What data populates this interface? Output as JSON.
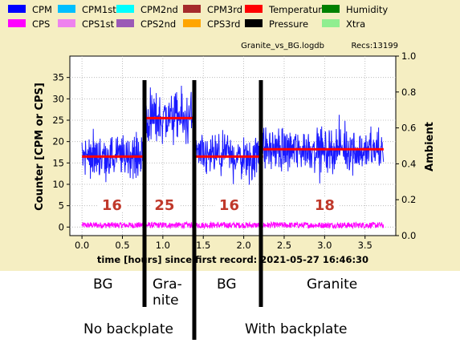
{
  "chart_data": {
    "type": "line",
    "file_label": "Granite_vs_BG.logdb",
    "recs_label": "Recs:13199",
    "xlabel": "time [hours] since first record: 2021-05-27 16:46:30",
    "ylabel_left": "Counter  [CPM or CPS]",
    "ylabel_right": "Ambient",
    "xlim": [
      -0.15,
      3.88
    ],
    "ylim_left": [
      -2,
      40
    ],
    "ylim_right": [
      0.0,
      1.0
    ],
    "x_ticks": [
      "0.0",
      "0.5",
      "1.0",
      "1.5",
      "2.0",
      "2.5",
      "3.0",
      "3.5"
    ],
    "y_ticks_left": [
      "0",
      "5",
      "10",
      "15",
      "20",
      "25",
      "30",
      "35"
    ],
    "y_ticks_right": [
      "0.0",
      "0.2",
      "0.4",
      "0.6",
      "0.8",
      "1.0"
    ],
    "legend": [
      {
        "name": "CPM",
        "color": "#0000ff"
      },
      {
        "name": "CPM1st",
        "color": "#00bfff"
      },
      {
        "name": "CPM2nd",
        "color": "#00ffff"
      },
      {
        "name": "CPM3rd",
        "color": "#a52a2a"
      },
      {
        "name": "Temperature",
        "color": "#ff0000"
      },
      {
        "name": "Humidity",
        "color": "#008000"
      },
      {
        "name": "CPS",
        "color": "#ff00ff"
      },
      {
        "name": "CPS1st",
        "color": "#ee82ee"
      },
      {
        "name": "CPS2nd",
        "color": "#9b59b6"
      },
      {
        "name": "CPS3rd",
        "color": "#ffa500"
      },
      {
        "name": "Pressure",
        "color": "#000000"
      },
      {
        "name": "Xtra",
        "color": "#90ee90"
      }
    ],
    "series": [
      {
        "name": "CPM",
        "color": "#1a1aff",
        "segments": [
          {
            "x_start": 0.0,
            "x_end": 0.77,
            "mean": 16.5,
            "spread": 5.5
          },
          {
            "x_start": 0.77,
            "x_end": 1.38,
            "mean": 25.5,
            "spread": 6.5
          },
          {
            "x_start": 1.38,
            "x_end": 2.24,
            "mean": 16.5,
            "spread": 5.5
          },
          {
            "x_start": 2.24,
            "x_end": 3.73,
            "mean": 18.2,
            "spread": 5.5
          }
        ]
      },
      {
        "name": "CPS",
        "color": "#ff00ff",
        "mean": 0.3,
        "spread": 1.4
      }
    ],
    "average_lines": [
      {
        "x_start": 0.0,
        "x_end": 0.77,
        "y": 16.5,
        "label": "16",
        "label_x": 0.37
      },
      {
        "x_start": 0.77,
        "x_end": 1.38,
        "y": 25.5,
        "label": "25",
        "label_x": 1.02
      },
      {
        "x_start": 1.38,
        "x_end": 2.24,
        "y": 16.5,
        "label": "16",
        "label_x": 1.82
      },
      {
        "x_start": 2.24,
        "x_end": 3.73,
        "y": 18.2,
        "label": "18",
        "label_x": 3.0
      }
    ],
    "average_color": "#ff0000",
    "average_label_color": "#c0392b"
  },
  "annotations": {
    "segment_labels": [
      "BG",
      "Gra-\nnite",
      "BG",
      "Granite"
    ],
    "group_labels": [
      "No backplate",
      "With backplate"
    ]
  }
}
